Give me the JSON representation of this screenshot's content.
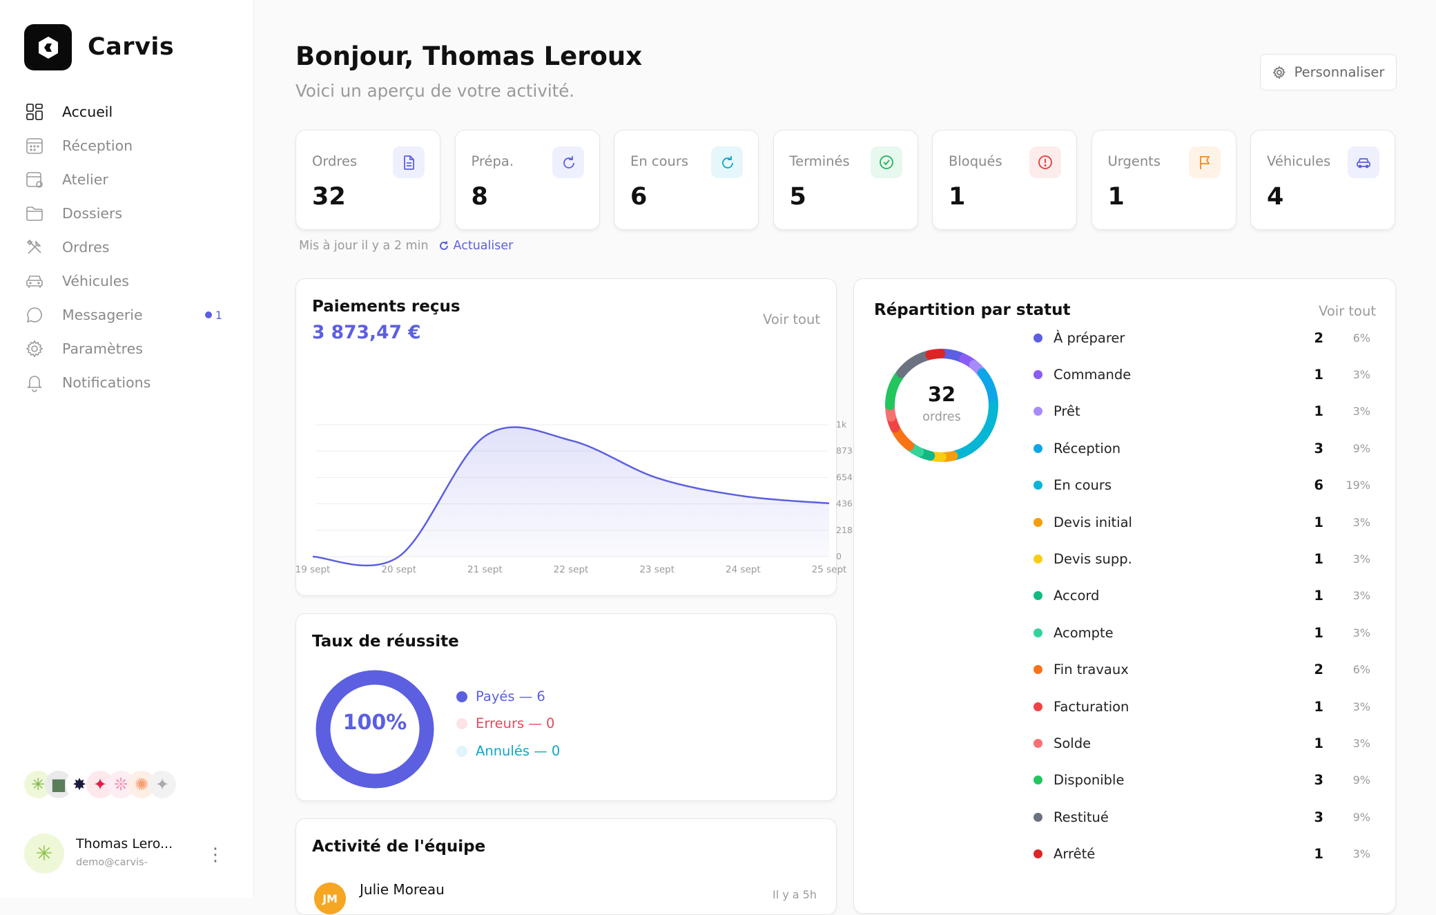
{
  "brand": {
    "name": "Carvis"
  },
  "sidebar": {
    "items": [
      {
        "label": "Accueil",
        "icon": "dashboard-icon",
        "active": true
      },
      {
        "label": "Réception",
        "icon": "calendar-icon"
      },
      {
        "label": "Atelier",
        "icon": "workshop-icon"
      },
      {
        "label": "Dossiers",
        "icon": "folder-icon"
      },
      {
        "label": "Ordres",
        "icon": "tools-icon"
      },
      {
        "label": "Véhicules",
        "icon": "car-icon"
      },
      {
        "label": "Messagerie",
        "icon": "chat-icon",
        "badge": "1"
      },
      {
        "label": "Paramètres",
        "icon": "gear-icon"
      },
      {
        "label": "Notifications",
        "icon": "bell-icon"
      }
    ],
    "user": {
      "name": "Thomas Lero...",
      "email": "demo@carvis-"
    }
  },
  "header": {
    "title": "Bonjour, Thomas Leroux",
    "subtitle": "Voici un aperçu de votre activité.",
    "customize_label": "Personnaliser"
  },
  "stats": [
    {
      "label": "Ordres",
      "value": "32",
      "icon": "document-icon",
      "color": "#5b5fe0",
      "bg": "#eef0fd"
    },
    {
      "label": "Prépa.",
      "value": "8",
      "icon": "refresh-icon",
      "color": "#5b5fe0",
      "bg": "#eef0fd"
    },
    {
      "label": "En cours",
      "value": "6",
      "icon": "refresh-icon",
      "color": "#0ea5c9",
      "bg": "#e6f7fb"
    },
    {
      "label": "Terminés",
      "value": "5",
      "icon": "check-circle-icon",
      "color": "#22b35e",
      "bg": "#e7f8ee"
    },
    {
      "label": "Bloqués",
      "value": "1",
      "icon": "alert-circle-icon",
      "color": "#e53935",
      "bg": "#fdecec"
    },
    {
      "label": "Urgents",
      "value": "1",
      "icon": "flag-icon",
      "color": "#f08c1a",
      "bg": "#fef3e6"
    },
    {
      "label": "Véhicules",
      "value": "4",
      "icon": "car-icon",
      "color": "#5b5fe0",
      "bg": "#eef0fd"
    }
  ],
  "updated": {
    "text": "Mis à jour il y a 2 min",
    "refresh_label": "Actualiser"
  },
  "payments": {
    "title": "Paiements reçus",
    "amount": "3 873,47 €",
    "see_all": "Voir tout"
  },
  "chart_data": {
    "type": "area",
    "x": [
      "19 sept",
      "20 sept",
      "21 sept",
      "22 sept",
      "23 sept",
      "24 sept",
      "25 sept"
    ],
    "values": [
      0,
      0,
      995,
      960,
      650,
      500,
      440
    ],
    "ylim": [
      0,
      1090
    ],
    "y_ticks": [
      "0",
      "218",
      "436",
      "654",
      "873",
      "1k"
    ],
    "color": "#5b5fe0"
  },
  "success": {
    "title": "Taux de réussite",
    "percent": "100%",
    "legend": [
      {
        "label": "Payés — 6",
        "color": "#5b5fe0",
        "dot": "#5b5fe0"
      },
      {
        "label": "Erreurs — 0",
        "color": "#e5485d",
        "dot": "#fde3e6"
      },
      {
        "label": "Annulés — 0",
        "color": "#0ea5c9",
        "dot": "#e1f3fb"
      }
    ]
  },
  "activity": {
    "title": "Activité de l'équipe",
    "first_user": {
      "initials": "JM",
      "name": "Julie Moreau",
      "time": "Il y a 5h"
    }
  },
  "status": {
    "title": "Répartition par statut",
    "see_all": "Voir tout",
    "total": "32",
    "total_label": "ordres",
    "rows": [
      {
        "label": "À préparer",
        "count": "2",
        "pct": "6%",
        "color": "#5b5fe0"
      },
      {
        "label": "Commande",
        "count": "1",
        "pct": "3%",
        "color": "#8b5cf6"
      },
      {
        "label": "Prêt",
        "count": "1",
        "pct": "3%",
        "color": "#a78bfa"
      },
      {
        "label": "Réception",
        "count": "3",
        "pct": "9%",
        "color": "#0ea5e9"
      },
      {
        "label": "En cours",
        "count": "6",
        "pct": "19%",
        "color": "#06b6d4"
      },
      {
        "label": "Devis initial",
        "count": "1",
        "pct": "3%",
        "color": "#f59e0b"
      },
      {
        "label": "Devis supp.",
        "count": "1",
        "pct": "3%",
        "color": "#facc15"
      },
      {
        "label": "Accord",
        "count": "1",
        "pct": "3%",
        "color": "#10b981"
      },
      {
        "label": "Acompte",
        "count": "1",
        "pct": "3%",
        "color": "#34d399"
      },
      {
        "label": "Fin travaux",
        "count": "2",
        "pct": "6%",
        "color": "#f97316"
      },
      {
        "label": "Facturation",
        "count": "1",
        "pct": "3%",
        "color": "#ef4444"
      },
      {
        "label": "Solde",
        "count": "1",
        "pct": "3%",
        "color": "#f87171"
      },
      {
        "label": "Disponible",
        "count": "3",
        "pct": "9%",
        "color": "#22c55e"
      },
      {
        "label": "Restitué",
        "count": "3",
        "pct": "9%",
        "color": "#6b7280"
      },
      {
        "label": "Arrêté",
        "count": "1",
        "pct": "3%",
        "color": "#dc2626"
      }
    ]
  }
}
